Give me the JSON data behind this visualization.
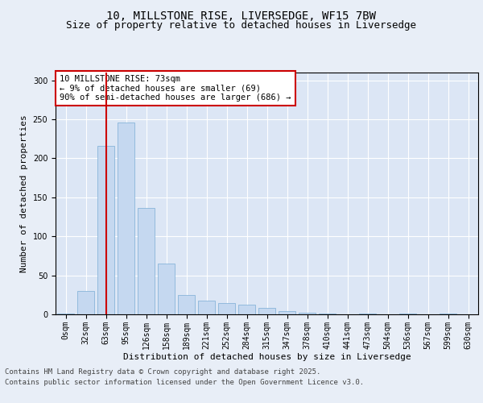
{
  "title_line1": "10, MILLSTONE RISE, LIVERSEDGE, WF15 7BW",
  "title_line2": "Size of property relative to detached houses in Liversedge",
  "xlabel": "Distribution of detached houses by size in Liversedge",
  "ylabel": "Number of detached properties",
  "categories": [
    "0sqm",
    "32sqm",
    "63sqm",
    "95sqm",
    "126sqm",
    "158sqm",
    "189sqm",
    "221sqm",
    "252sqm",
    "284sqm",
    "315sqm",
    "347sqm",
    "378sqm",
    "410sqm",
    "441sqm",
    "473sqm",
    "504sqm",
    "536sqm",
    "567sqm",
    "599sqm",
    "630sqm"
  ],
  "values": [
    1,
    30,
    216,
    246,
    136,
    65,
    25,
    18,
    14,
    12,
    8,
    4,
    2,
    1,
    0,
    1,
    0,
    1,
    0,
    1,
    0
  ],
  "bar_color": "#c5d8f0",
  "bar_edge_color": "#7aadd4",
  "vline_x_index": 2,
  "vline_color": "#cc0000",
  "annotation_text": "10 MILLSTONE RISE: 73sqm\n← 9% of detached houses are smaller (69)\n90% of semi-detached houses are larger (686) →",
  "annotation_box_color": "#ffffff",
  "annotation_box_edge": "#cc0000",
  "ylim": [
    0,
    310
  ],
  "yticks": [
    0,
    50,
    100,
    150,
    200,
    250,
    300
  ],
  "background_color": "#e8eef7",
  "plot_bg_color": "#dce6f5",
  "footer_line1": "Contains HM Land Registry data © Crown copyright and database right 2025.",
  "footer_line2": "Contains public sector information licensed under the Open Government Licence v3.0.",
  "title_fontsize": 10,
  "subtitle_fontsize": 9,
  "axis_label_fontsize": 8,
  "tick_fontsize": 7,
  "annotation_fontsize": 7.5,
  "footer_fontsize": 6.5
}
